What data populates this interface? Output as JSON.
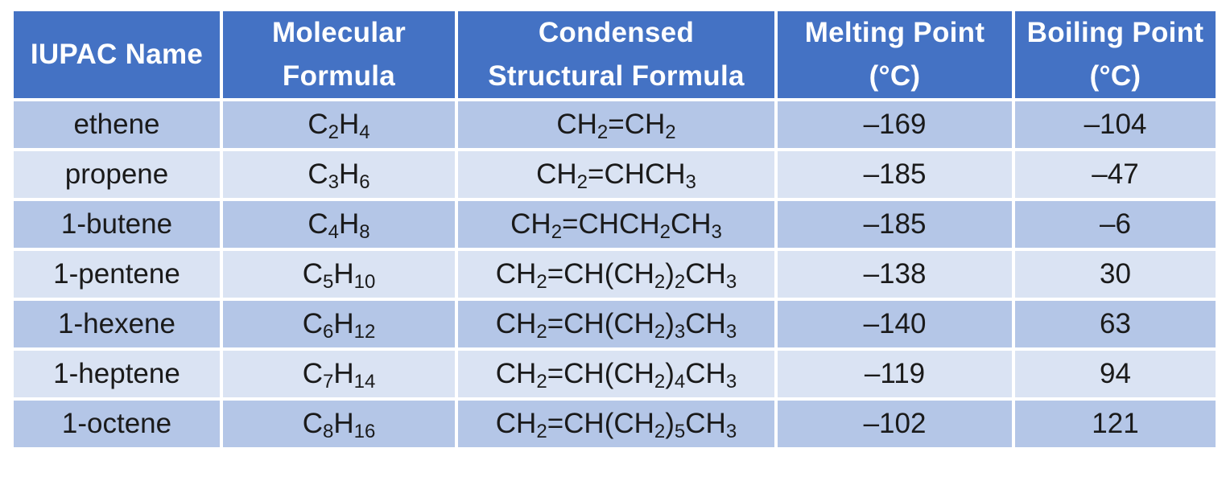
{
  "table": {
    "headers": [
      {
        "key": "iupac_name",
        "lines": [
          "IUPAC Name"
        ]
      },
      {
        "key": "molecular_formula",
        "lines": [
          "Molecular",
          "Formula"
        ]
      },
      {
        "key": "condensed_formula",
        "lines": [
          "Condensed",
          "Structural Formula"
        ]
      },
      {
        "key": "melting_point",
        "lines": [
          "Melting Point",
          "(°C)"
        ]
      },
      {
        "key": "boiling_point",
        "lines": [
          "Boiling Point",
          "(°C)"
        ]
      }
    ],
    "rows": [
      {
        "name": "ethene",
        "molecular": [
          {
            "t": "C"
          },
          {
            "s": "2"
          },
          {
            "t": "H"
          },
          {
            "s": "4"
          }
        ],
        "condensed": [
          {
            "t": "CH"
          },
          {
            "s": "2"
          },
          {
            "t": "=CH"
          },
          {
            "s": "2"
          }
        ],
        "melting_point": "–169",
        "boiling_point": "–104"
      },
      {
        "name": "propene",
        "molecular": [
          {
            "t": "C"
          },
          {
            "s": "3"
          },
          {
            "t": "H"
          },
          {
            "s": "6"
          }
        ],
        "condensed": [
          {
            "t": "CH"
          },
          {
            "s": "2"
          },
          {
            "t": "=CHCH"
          },
          {
            "s": "3"
          }
        ],
        "melting_point": "–185",
        "boiling_point": "–47"
      },
      {
        "name": "1-butene",
        "molecular": [
          {
            "t": "C"
          },
          {
            "s": "4"
          },
          {
            "t": "H"
          },
          {
            "s": "8"
          }
        ],
        "condensed": [
          {
            "t": "CH"
          },
          {
            "s": "2"
          },
          {
            "t": "=CHCH"
          },
          {
            "s": "2"
          },
          {
            "t": "CH"
          },
          {
            "s": "3"
          }
        ],
        "melting_point": "–185",
        "boiling_point": "–6"
      },
      {
        "name": "1-pentene",
        "molecular": [
          {
            "t": "C"
          },
          {
            "s": "5"
          },
          {
            "t": "H"
          },
          {
            "s": "10"
          }
        ],
        "condensed": [
          {
            "t": "CH"
          },
          {
            "s": "2"
          },
          {
            "t": "=CH(CH"
          },
          {
            "s": "2"
          },
          {
            "t": ")"
          },
          {
            "s": "2"
          },
          {
            "t": "CH"
          },
          {
            "s": "3"
          }
        ],
        "melting_point": "–138",
        "boiling_point": "30"
      },
      {
        "name": "1-hexene",
        "molecular": [
          {
            "t": "C"
          },
          {
            "s": "6"
          },
          {
            "t": "H"
          },
          {
            "s": "12"
          }
        ],
        "condensed": [
          {
            "t": "CH"
          },
          {
            "s": "2"
          },
          {
            "t": "=CH(CH"
          },
          {
            "s": "2"
          },
          {
            "t": ")"
          },
          {
            "s": "3"
          },
          {
            "t": "CH"
          },
          {
            "s": "3"
          }
        ],
        "melting_point": "–140",
        "boiling_point": "63"
      },
      {
        "name": "1-heptene",
        "molecular": [
          {
            "t": "C"
          },
          {
            "s": "7"
          },
          {
            "t": "H"
          },
          {
            "s": "14"
          }
        ],
        "condensed": [
          {
            "t": "CH"
          },
          {
            "s": "2"
          },
          {
            "t": "=CH(CH"
          },
          {
            "s": "2"
          },
          {
            "t": ")"
          },
          {
            "s": "4"
          },
          {
            "t": "CH"
          },
          {
            "s": "3"
          }
        ],
        "melting_point": "–119",
        "boiling_point": "94"
      },
      {
        "name": "1-octene",
        "molecular": [
          {
            "t": "C"
          },
          {
            "s": "8"
          },
          {
            "t": "H"
          },
          {
            "s": "16"
          }
        ],
        "condensed": [
          {
            "t": "CH"
          },
          {
            "s": "2"
          },
          {
            "t": "=CH(CH"
          },
          {
            "s": "2"
          },
          {
            "t": ")"
          },
          {
            "s": "5"
          },
          {
            "t": "CH"
          },
          {
            "s": "3"
          }
        ],
        "melting_point": "–102",
        "boiling_point": "121"
      }
    ]
  },
  "colors": {
    "header_bg": "#4472c4",
    "header_text": "#ffffff",
    "row_odd_bg": "#b4c6e7",
    "row_even_bg": "#dae3f3",
    "cell_text": "#1a1a1a",
    "grid_lines": "#ffffff"
  }
}
